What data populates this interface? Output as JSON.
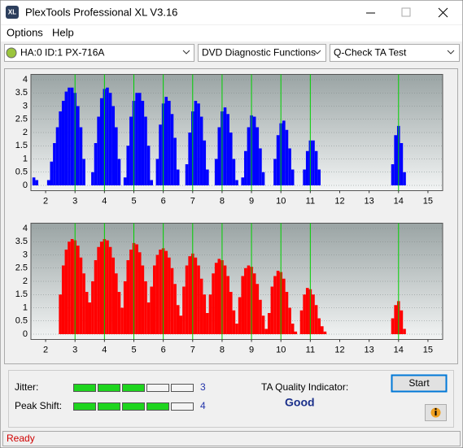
{
  "window": {
    "icon_text": "XL",
    "title": "PlexTools Professional XL V3.16"
  },
  "menu": [
    "Options",
    "Help"
  ],
  "toolbar": {
    "drive": "HA:0 ID:1  PX-716A",
    "function": "DVD Diagnostic Functions",
    "test": "Q-Check TA Test"
  },
  "chart_data": [
    {
      "type": "bar",
      "color": "#0000ff",
      "marker_color": "#00d000",
      "grid": true,
      "xlim": [
        1.5,
        15.5
      ],
      "ylim": [
        -0.2,
        4.2
      ],
      "xticks": [
        2,
        3,
        4,
        5,
        6,
        7,
        8,
        9,
        10,
        11,
        12,
        13,
        14,
        15
      ],
      "yticks": [
        0,
        0.5,
        1,
        1.5,
        2,
        2.5,
        3,
        3.5,
        4
      ],
      "markers": [
        3,
        4,
        5,
        6,
        7,
        8,
        9,
        10,
        11,
        14
      ],
      "x": [
        1.6,
        1.7,
        1.8,
        1.9,
        2,
        2.1,
        2.2,
        2.3,
        2.4,
        2.5,
        2.6,
        2.7,
        2.8,
        2.9,
        3,
        3.1,
        3.2,
        3.3,
        3.4,
        3.5,
        3.6,
        3.7,
        3.8,
        3.9,
        4,
        4.1,
        4.2,
        4.3,
        4.4,
        4.5,
        4.6,
        4.7,
        4.8,
        4.9,
        5,
        5.1,
        5.2,
        5.3,
        5.4,
        5.5,
        5.6,
        5.7,
        5.8,
        5.9,
        6,
        6.1,
        6.2,
        6.3,
        6.4,
        6.5,
        6.6,
        6.7,
        6.8,
        6.9,
        7,
        7.1,
        7.2,
        7.3,
        7.4,
        7.5,
        7.6,
        7.7,
        7.8,
        7.9,
        8,
        8.1,
        8.2,
        8.3,
        8.4,
        8.5,
        8.6,
        8.7,
        8.8,
        8.9,
        9,
        9.1,
        9.2,
        9.3,
        9.4,
        9.5,
        9.6,
        9.7,
        9.8,
        9.9,
        10,
        10.1,
        10.2,
        10.3,
        10.4,
        10.5,
        10.6,
        10.7,
        10.8,
        10.9,
        11,
        11.1,
        11.2,
        11.3,
        11.4,
        11.5,
        11.6,
        13.7,
        13.8,
        13.9,
        14,
        14.1,
        14.2,
        14.3
      ],
      "values": [
        0.3,
        0.2,
        0,
        0,
        0,
        0.2,
        0.9,
        1.6,
        2.2,
        2.8,
        3.2,
        3.55,
        3.7,
        3.7,
        3.5,
        3.0,
        2.2,
        1.0,
        0,
        0,
        0.5,
        1.6,
        2.6,
        3.3,
        3.65,
        3.7,
        3.5,
        3.0,
        2.2,
        1.0,
        0,
        0.3,
        1.5,
        2.6,
        3.2,
        3.5,
        3.5,
        3.2,
        2.6,
        1.5,
        0.2,
        0,
        1.0,
        2.3,
        3.1,
        3.35,
        3.2,
        2.7,
        1.8,
        0.6,
        0,
        0,
        0.8,
        2.0,
        2.8,
        3.2,
        3.1,
        2.6,
        1.7,
        0.6,
        0,
        0,
        1.0,
        2.2,
        2.8,
        2.95,
        2.7,
        2.0,
        1.0,
        0.2,
        0,
        0.3,
        1.3,
        2.2,
        2.65,
        2.6,
        2.2,
        1.4,
        0.5,
        0,
        0,
        0,
        1.0,
        1.9,
        2.35,
        2.45,
        2.1,
        1.4,
        0.6,
        0,
        0,
        0,
        0.6,
        1.3,
        1.7,
        1.7,
        1.3,
        0.6,
        0,
        0,
        0,
        0,
        0.8,
        1.9,
        2.25,
        1.6,
        0.5,
        0
      ]
    },
    {
      "type": "bar",
      "color": "#ff0000",
      "marker_color": "#00d000",
      "grid": true,
      "xlim": [
        1.5,
        15.5
      ],
      "ylim": [
        -0.2,
        4.2
      ],
      "xticks": [
        2,
        3,
        4,
        5,
        6,
        7,
        8,
        9,
        10,
        11,
        12,
        13,
        14,
        15
      ],
      "yticks": [
        0,
        0.5,
        1,
        1.5,
        2,
        2.5,
        3,
        3.5,
        4
      ],
      "markers": [
        3,
        4,
        5,
        6,
        7,
        8,
        9,
        10,
        11,
        14
      ],
      "x": [
        1.6,
        1.7,
        1.8,
        1.9,
        2,
        2.1,
        2.2,
        2.3,
        2.4,
        2.5,
        2.6,
        2.7,
        2.8,
        2.9,
        3,
        3.1,
        3.2,
        3.3,
        3.4,
        3.5,
        3.6,
        3.7,
        3.8,
        3.9,
        4,
        4.1,
        4.2,
        4.3,
        4.4,
        4.5,
        4.6,
        4.7,
        4.8,
        4.9,
        5,
        5.1,
        5.2,
        5.3,
        5.4,
        5.5,
        5.6,
        5.7,
        5.8,
        5.9,
        6,
        6.1,
        6.2,
        6.3,
        6.4,
        6.5,
        6.6,
        6.7,
        6.8,
        6.9,
        7,
        7.1,
        7.2,
        7.3,
        7.4,
        7.5,
        7.6,
        7.7,
        7.8,
        7.9,
        8,
        8.1,
        8.2,
        8.3,
        8.4,
        8.5,
        8.6,
        8.7,
        8.8,
        8.9,
        9,
        9.1,
        9.2,
        9.3,
        9.4,
        9.5,
        9.6,
        9.7,
        9.8,
        9.9,
        10,
        10.1,
        10.2,
        10.3,
        10.4,
        10.5,
        10.6,
        10.7,
        10.8,
        10.9,
        11,
        11.1,
        11.2,
        11.3,
        11.4,
        11.5,
        11.6,
        13.7,
        13.8,
        13.9,
        14,
        14.1,
        14.2,
        14.3
      ],
      "values": [
        0,
        0,
        0,
        0,
        0,
        0,
        0,
        0,
        0,
        1.5,
        2.6,
        3.2,
        3.5,
        3.6,
        3.55,
        3.35,
        2.9,
        2.3,
        1.6,
        1.2,
        2.0,
        2.8,
        3.3,
        3.5,
        3.6,
        3.55,
        3.3,
        2.9,
        2.3,
        1.6,
        1.0,
        2.0,
        2.8,
        3.2,
        3.45,
        3.4,
        3.1,
        2.6,
        2.0,
        1.2,
        1.8,
        2.6,
        3.0,
        3.2,
        3.25,
        3.15,
        2.9,
        2.5,
        1.9,
        1.1,
        0.7,
        1.8,
        2.6,
        2.95,
        3.05,
        2.9,
        2.6,
        2.1,
        1.5,
        0.8,
        1.5,
        2.3,
        2.7,
        2.85,
        2.8,
        2.6,
        2.2,
        1.6,
        0.9,
        0.4,
        1.4,
        2.2,
        2.5,
        2.6,
        2.55,
        2.3,
        1.9,
        1.3,
        0.7,
        0.2,
        0.8,
        1.8,
        2.2,
        2.4,
        2.35,
        2.1,
        1.6,
        1.0,
        0.4,
        0.1,
        0,
        0.9,
        1.5,
        1.75,
        1.7,
        1.5,
        1.1,
        0.6,
        0.3,
        0.1,
        0,
        0,
        0.6,
        1.1,
        1.25,
        0.9,
        0.2,
        0
      ]
    }
  ],
  "results": {
    "jitter": {
      "label": "Jitter:",
      "value": 3
    },
    "peak_shift": {
      "label": "Peak Shift:",
      "value": 4
    },
    "ta_quality": {
      "label": "TA Quality Indicator:",
      "value": "Good"
    }
  },
  "buttons": {
    "start": "Start"
  },
  "status": "Ready"
}
